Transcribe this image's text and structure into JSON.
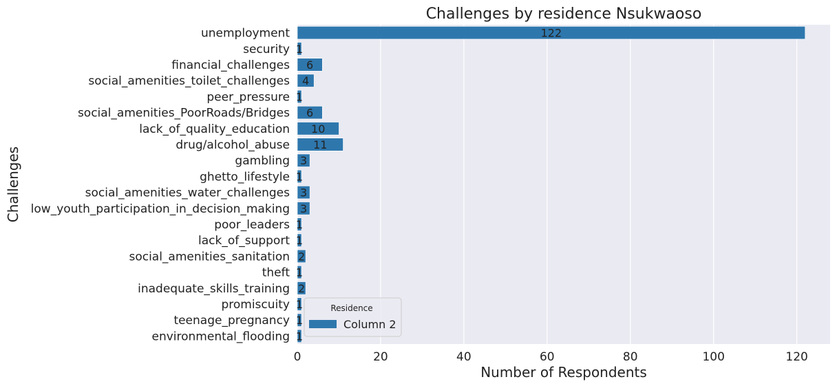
{
  "chart_data": {
    "type": "bar",
    "orientation": "horizontal",
    "title": "Challenges by residence Nsukwaoso",
    "xlabel": "Number of Respondents",
    "ylabel": "Challenges",
    "xlim": [
      0,
      128
    ],
    "xticks": [
      0,
      20,
      40,
      60,
      80,
      100,
      120
    ],
    "grid": true,
    "legend": {
      "title": "Residence",
      "position": "lower-left"
    },
    "categories": [
      "unemployment",
      "security",
      "financial_challenges",
      "social_amenities_toilet_challenges",
      "peer_pressure",
      "social_amenities_PoorRoads/Bridges",
      "lack_of_quality_education",
      "drug/alcohol_abuse",
      "gambling",
      "ghetto_lifestyle",
      "social_amenities_water_challenges",
      "low_youth_participation_in_decision_making",
      "poor_leaders",
      "lack_of_support",
      "social_amenities_sanitation",
      "theft",
      "inadequate_skills_training",
      "promiscuity",
      "teenage_pregnancy",
      "environmental_flooding"
    ],
    "series": [
      {
        "name": "Column 2",
        "color": "#2e77ad",
        "values": [
          122,
          1,
          6,
          4,
          1,
          6,
          10,
          11,
          3,
          1,
          3,
          3,
          1,
          1,
          2,
          1,
          2,
          1,
          1,
          1
        ]
      }
    ],
    "background_color": "#eaeaf2",
    "grid_color": "#ffffff"
  }
}
